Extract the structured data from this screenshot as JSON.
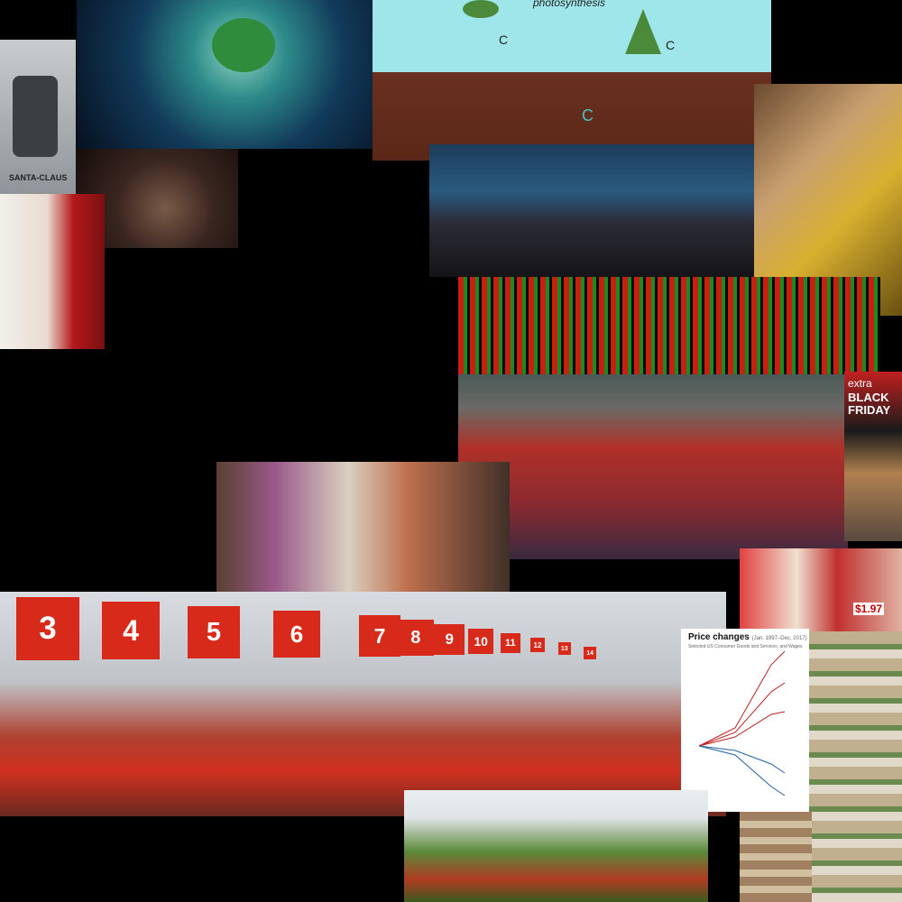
{
  "collage": {
    "santa_card": {
      "label": "SANTA-CLAUS"
    },
    "photosynthesis": {
      "label": "photosynthesis",
      "carbon_labels": [
        "C",
        "C",
        "C"
      ]
    },
    "checkout_lanes": [
      "3",
      "4",
      "5",
      "6",
      "7",
      "8",
      "9",
      "10",
      "11",
      "12",
      "13",
      "14"
    ],
    "price_chart": {
      "title": "Price changes",
      "period": "(Jan. 1997–Dec. 2017)",
      "subtitle": "Selected US Consumer Goods and Services, and Wages"
    },
    "black_friday": {
      "top": "extra",
      "label": "BLACK FRIDAY"
    },
    "price_tag": "$1.97"
  }
}
